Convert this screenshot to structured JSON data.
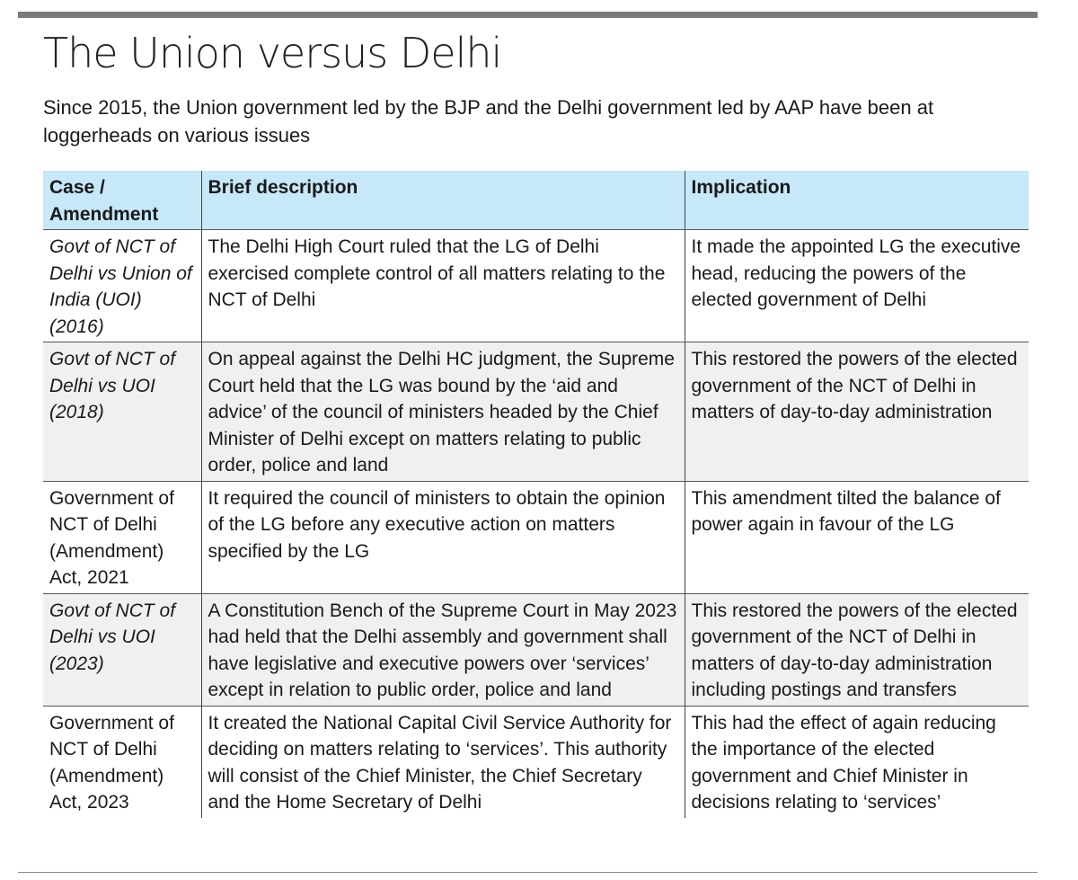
{
  "title": "The Union versus Delhi",
  "subtitle": " Since 2015, the Union government led by the BJP and the Delhi government led by AAP have been at loggerheads on various issues",
  "table": {
    "headers": [
      "Case / Amendment",
      "Brief description",
      "Implication"
    ],
    "rows": [
      {
        "case": "Govt of NCT of Delhi vs Union of India (UOI) (2016)",
        "italic": true,
        "description": "The Delhi High Court ruled that the LG of Delhi exercised complete control of all matters relating to the NCT of Delhi",
        "implication": "It made the appointed LG the executive head, reducing the powers of the elected government of Delhi"
      },
      {
        "case": "Govt of NCT of Delhi vs UOI (2018)",
        "italic": true,
        "description": "On appeal against the Delhi HC judgment, the Supreme Court held that the LG was bound by the ‘aid and advice’ of the council of ministers headed by the Chief Minister of Delhi except on matters relating to public order, police and land",
        "implication": "This restored the powers of the elected government of the NCT of Delhi in matters of day-to-day administration"
      },
      {
        "case": "Government of NCT of Delhi (Amendment) Act, 2021",
        "italic": false,
        "description": "It required the council of ministers to obtain the opinion of the LG before any executive action on matters specified by the LG",
        "implication": "This amendment tilted the balance of power again in favour of the LG"
      },
      {
        "case": "Govt of NCT of Delhi vs UOI (2023)",
        "italic": true,
        "description": "A Constitution Bench of the Supreme Court in May 2023 had held that the Delhi assembly and government shall have legislative and executive powers over ‘services’ except in relation to public order, police and land",
        "implication": "This restored the powers of the elected government of the NCT of Delhi in matters of day-to-day administration including postings and transfers"
      },
      {
        "case": "Government of NCT of Delhi (Amendment) Act, 2023",
        "italic": false,
        "description": "It created the National Capital Civil Service Authority for deciding on matters relating to ‘services’. This authority will consist of the Chief Minister, the Chief Secretary and the Home Secretary of Delhi",
        "implication": "This had the effect of again reducing the importance of the elected government and Chief Minister in decisions relating to ‘services’"
      }
    ]
  },
  "colors": {
    "header_bg": "#c6e8f8",
    "shade_bg": "#f0f0f0",
    "rule": "#7a7a7a"
  }
}
